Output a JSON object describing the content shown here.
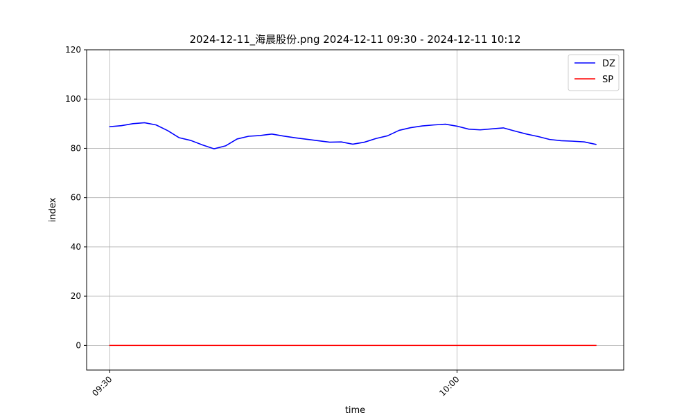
{
  "chart_data": {
    "type": "line",
    "title": "2024-12-11_海晨股份.png 2024-12-11 09:30 - 2024-12-11 10:12",
    "xlabel": "time",
    "ylabel": "index",
    "x_unit": "minutes",
    "x_start": "09:30",
    "x": [
      0,
      1,
      2,
      3,
      4,
      5,
      6,
      7,
      8,
      9,
      10,
      11,
      12,
      13,
      14,
      15,
      16,
      17,
      18,
      19,
      20,
      21,
      22,
      23,
      24,
      25,
      26,
      27,
      28,
      29,
      30,
      31,
      32,
      33,
      34,
      35,
      36,
      37,
      38,
      39,
      40,
      41,
      42
    ],
    "xlim": [
      -2,
      44.4
    ],
    "ylim": [
      -10,
      120
    ],
    "xticks": [
      {
        "value": 0,
        "label": "09:30"
      },
      {
        "value": 30,
        "label": "10:00"
      }
    ],
    "yticks": [
      {
        "value": 0,
        "label": "0"
      },
      {
        "value": 20,
        "label": "20"
      },
      {
        "value": 40,
        "label": "40"
      },
      {
        "value": 60,
        "label": "60"
      },
      {
        "value": 80,
        "label": "80"
      },
      {
        "value": 100,
        "label": "100"
      },
      {
        "value": 120,
        "label": "120"
      }
    ],
    "grid": true,
    "legend_position": "top-right",
    "series": [
      {
        "name": "DZ",
        "color": "#0000ff",
        "values": [
          88.8,
          89.2,
          90.0,
          90.4,
          89.5,
          87.2,
          84.3,
          83.2,
          81.4,
          79.8,
          81.0,
          83.8,
          84.9,
          85.2,
          85.8,
          85.0,
          84.3,
          83.7,
          83.1,
          82.5,
          82.6,
          81.7,
          82.5,
          84.0,
          85.1,
          87.3,
          88.4,
          89.1,
          89.5,
          89.8,
          89.0,
          87.8,
          87.5,
          87.9,
          88.3,
          87.0,
          85.8,
          84.8,
          83.6,
          83.1,
          82.9,
          82.6,
          81.6
        ]
      },
      {
        "name": "SP",
        "color": "#ff0000",
        "values": [
          0,
          0,
          0,
          0,
          0,
          0,
          0,
          0,
          0,
          0,
          0,
          0,
          0,
          0,
          0,
          0,
          0,
          0,
          0,
          0,
          0,
          0,
          0,
          0,
          0,
          0,
          0,
          0,
          0,
          0,
          0,
          0,
          0,
          0,
          0,
          0,
          0,
          0,
          0,
          0,
          0,
          0,
          0
        ]
      }
    ]
  }
}
